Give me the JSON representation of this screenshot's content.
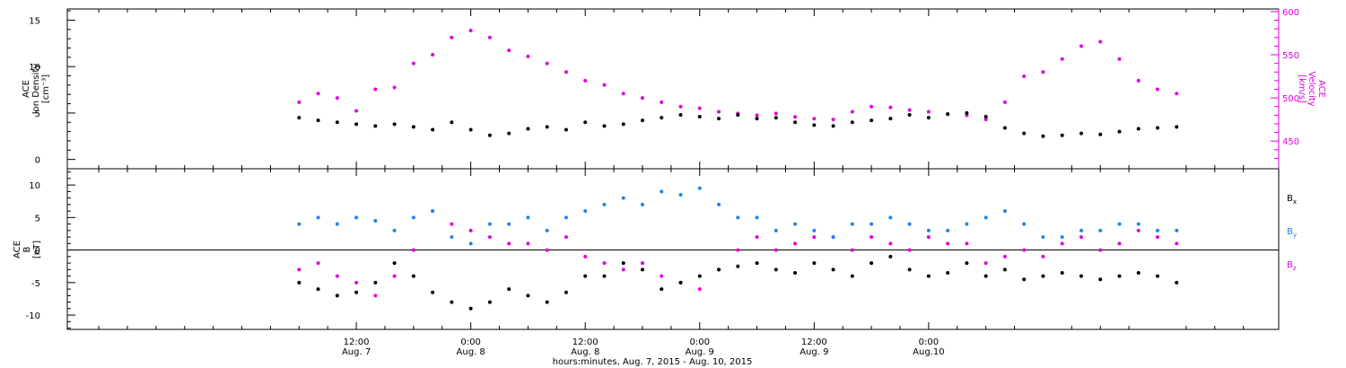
{
  "chart_data": [
    {
      "type": "scatter",
      "panel": "plasma",
      "ylabel_left": [
        "ACE",
        "Ion Density",
        "[cm⁻³]"
      ],
      "ylabel_right": [
        "ACE",
        "Velocity",
        "[km/s]"
      ],
      "ylim_left": [
        -1,
        16.2
      ],
      "ylim_right": [
        418,
        603
      ],
      "yticks_left": [
        0,
        5,
        10,
        15
      ],
      "yticks_right": [
        450,
        500,
        550,
        600
      ],
      "series": [
        {
          "axis": "left",
          "color": "#000000",
          "x": [
            0,
            2,
            4,
            6,
            8,
            10,
            12,
            14,
            16,
            18,
            20,
            22,
            24,
            26,
            28,
            30,
            32,
            34,
            36,
            38,
            40,
            42,
            44,
            46,
            48,
            50,
            52,
            54,
            56,
            58,
            60,
            62,
            64,
            66,
            68,
            70,
            72,
            74,
            76,
            78,
            80,
            82,
            84,
            86,
            88,
            90,
            92
          ],
          "values": [
            4.5,
            4.2,
            4.0,
            3.8,
            3.6,
            3.8,
            3.5,
            3.2,
            4.0,
            3.2,
            2.6,
            2.8,
            3.3,
            3.5,
            3.2,
            4.0,
            3.6,
            3.8,
            4.2,
            4.5,
            4.8,
            4.6,
            4.4,
            4.8,
            4.4,
            4.5,
            4.0,
            3.7,
            3.6,
            4.0,
            4.2,
            4.4,
            4.8,
            4.5,
            4.9,
            5.0,
            4.6,
            3.4,
            2.8,
            2.5,
            2.6,
            2.8,
            2.7,
            3.0,
            3.3,
            3.4,
            3.5
          ]
        },
        {
          "axis": "right",
          "color": "#e000e0",
          "x": [
            0,
            2,
            4,
            6,
            8,
            10,
            12,
            14,
            16,
            18,
            20,
            22,
            24,
            26,
            28,
            30,
            32,
            34,
            36,
            38,
            40,
            42,
            44,
            46,
            48,
            50,
            52,
            54,
            56,
            58,
            60,
            62,
            64,
            66,
            68,
            70,
            72,
            74,
            76,
            78,
            80,
            82,
            84,
            86,
            88,
            90,
            92
          ],
          "values": [
            495,
            505,
            500,
            485,
            510,
            512,
            540,
            550,
            570,
            578,
            570,
            555,
            548,
            540,
            530,
            520,
            515,
            505,
            500,
            495,
            490,
            488,
            484,
            482,
            480,
            482,
            478,
            476,
            475,
            484,
            490,
            489,
            486,
            484,
            481,
            480,
            475,
            495,
            525,
            530,
            545,
            560,
            565,
            545,
            520,
            510,
            505
          ]
        }
      ]
    },
    {
      "type": "scatter",
      "panel": "magnetic-field",
      "ylabel": [
        "ACE",
        "B",
        "[nT]"
      ],
      "ylim": [
        -12.2,
        12.5
      ],
      "yticks": [
        -10,
        -5,
        0,
        5,
        10
      ],
      "legend": [
        "Bx",
        "By",
        "Bz"
      ],
      "legend_placement": "right",
      "series": [
        {
          "name": "Bx",
          "color": "#000000",
          "x": [
            0,
            2,
            4,
            6,
            8,
            10,
            12,
            14,
            16,
            18,
            20,
            22,
            24,
            26,
            28,
            30,
            32,
            34,
            36,
            38,
            40,
            42,
            44,
            46,
            48,
            50,
            52,
            54,
            56,
            58,
            60,
            62,
            64,
            66,
            68,
            70,
            72,
            74,
            76,
            78,
            80,
            82,
            84,
            86,
            88,
            90,
            92
          ],
          "values": [
            -5,
            -6,
            -7,
            -6.5,
            -5,
            -2,
            -4,
            -6.5,
            -8,
            -9,
            -8,
            -6,
            -7,
            -8,
            -6.5,
            -4,
            -4,
            -2,
            -3,
            -6,
            -5,
            -4,
            -3,
            -2.5,
            -2,
            -3,
            -3.5,
            -2,
            -3,
            -4,
            -2,
            -1,
            -3,
            -4,
            -3.5,
            -2,
            -4,
            -3,
            -4.5,
            -4,
            -3.5,
            -4,
            -4.5,
            -4,
            -3.5,
            -4,
            -5
          ]
        },
        {
          "name": "By",
          "color": "#1c86ee",
          "x": [
            0,
            2,
            4,
            6,
            8,
            10,
            12,
            14,
            16,
            18,
            20,
            22,
            24,
            26,
            28,
            30,
            32,
            34,
            36,
            38,
            40,
            42,
            44,
            46,
            48,
            50,
            52,
            54,
            56,
            58,
            60,
            62,
            64,
            66,
            68,
            70,
            72,
            74,
            76,
            78,
            80,
            82,
            84,
            86,
            88,
            90,
            92
          ],
          "values": [
            4,
            5,
            4,
            5,
            4.5,
            3,
            5,
            6,
            2,
            1,
            4,
            4,
            5,
            3,
            5,
            6,
            7,
            8,
            7,
            9,
            8.5,
            9.5,
            7,
            5,
            5,
            3,
            4,
            3,
            2,
            4,
            4,
            5,
            4,
            3,
            3,
            4,
            5,
            6,
            4,
            2,
            2,
            3,
            3,
            4,
            4,
            3,
            3
          ]
        },
        {
          "name": "Bz",
          "color": "#e000e0",
          "x": [
            0,
            2,
            4,
            6,
            8,
            10,
            12,
            14,
            16,
            18,
            20,
            22,
            24,
            26,
            28,
            30,
            32,
            34,
            36,
            38,
            40,
            42,
            44,
            46,
            48,
            50,
            52,
            54,
            56,
            58,
            60,
            62,
            64,
            66,
            68,
            70,
            72,
            74,
            76,
            78,
            80,
            82,
            84,
            86,
            88,
            90,
            92
          ],
          "values": [
            -3,
            -2,
            -4,
            -5,
            -7,
            -4,
            0,
            6,
            4,
            3,
            2,
            1,
            1,
            0,
            2,
            -1,
            -2,
            -3,
            -2,
            -4,
            -5,
            -6,
            -3,
            0,
            2,
            0,
            1,
            2,
            2,
            0,
            2,
            1,
            0,
            2,
            1,
            1,
            -2,
            -1,
            0,
            -1,
            1,
            2,
            0,
            1,
            3,
            2,
            1
          ]
        }
      ]
    }
  ],
  "x_axis": {
    "ticks": [
      {
        "time": "12:00",
        "date": "Aug. 7",
        "hour": 6
      },
      {
        "time": "0:00",
        "date": "Aug. 8",
        "hour": 18
      },
      {
        "time": "12:00",
        "date": "Aug. 8",
        "hour": 30
      },
      {
        "time": "0:00",
        "date": "Aug. 9",
        "hour": 42
      },
      {
        "time": "12:00",
        "date": "Aug. 9",
        "hour": 54
      },
      {
        "time": "0:00",
        "date": "Aug.10",
        "hour": 66
      }
    ],
    "xlim_hours": [
      -24.3,
      102.7
    ],
    "label": "hours:minutes, Aug.  7, 2015 - Aug. 10, 2015"
  },
  "legend": {
    "bx": {
      "base": "B",
      "sub": "x",
      "color": "#000000"
    },
    "by": {
      "base": "B",
      "sub": "y",
      "color": "#1c86ee"
    },
    "bz": {
      "base": "B",
      "sub": "z",
      "color": "#e000e0"
    }
  },
  "colors": {
    "magenta": "#e000e0",
    "blue": "#1c86ee",
    "black": "#000000"
  }
}
